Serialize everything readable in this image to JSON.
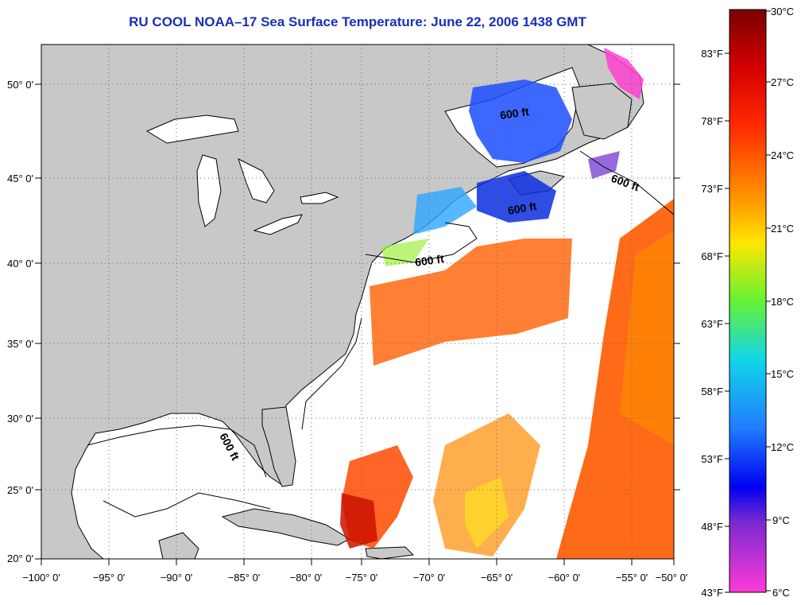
{
  "title": "RU COOL  NOAA–17  Sea Surface Temperature:  June 22, 2006 1438 GMT",
  "colors": {
    "land": "#c8c8c8",
    "ocean": "#ffffff",
    "title": "#1a2fb5"
  },
  "lon_labels": [
    "−100° 0'",
    "−95° 0'",
    "−90° 0'",
    "−85° 0'",
    "−80° 0'",
    "−75° 0'",
    "−70° 0'",
    "−65° 0'",
    "−60° 0'",
    "−55° 0'",
    "−50° 0'"
  ],
  "lat_labels": [
    "50° 0'",
    "45° 0'",
    "40° 0'",
    "35° 0'",
    "30° 0'",
    "25° 0'",
    "20° 0'"
  ],
  "isobath_label": "600 ft",
  "colorbar": {
    "celsius": [
      "30°C",
      "27°C",
      "24°C",
      "21°C",
      "18°C",
      "15°C",
      "12°C",
      "9°C",
      "6°C"
    ],
    "fahrenheit": [
      "83°F",
      "78°F",
      "73°F",
      "68°F",
      "63°F",
      "58°F",
      "53°F",
      "48°F",
      "43°F"
    ]
  }
}
